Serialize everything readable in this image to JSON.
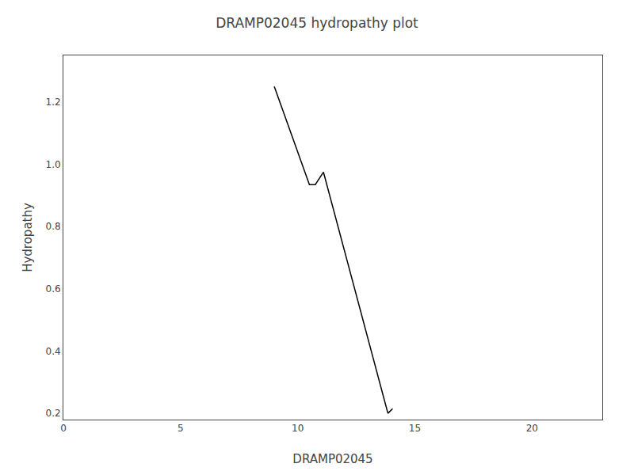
{
  "chart_data": {
    "type": "line",
    "title": "DRAMP02045 hydropathy plot",
    "xlabel": "DRAMP02045",
    "ylabel": "Hydropathy",
    "x": [
      9.0,
      10.5,
      10.75,
      11.1,
      13.85,
      14.05
    ],
    "values": [
      1.25,
      0.935,
      0.935,
      0.975,
      0.2,
      0.215
    ],
    "color": "#000000",
    "xlim": [
      0,
      23
    ],
    "ylim": [
      0.18,
      1.35
    ],
    "xticks": [
      0,
      5,
      10,
      15,
      20
    ],
    "yticks": [
      0.2,
      0.4,
      0.6,
      0.8,
      {
        "value": 1.0,
        "label": "1.0"
      },
      1.2
    ],
    "grid": false
  }
}
